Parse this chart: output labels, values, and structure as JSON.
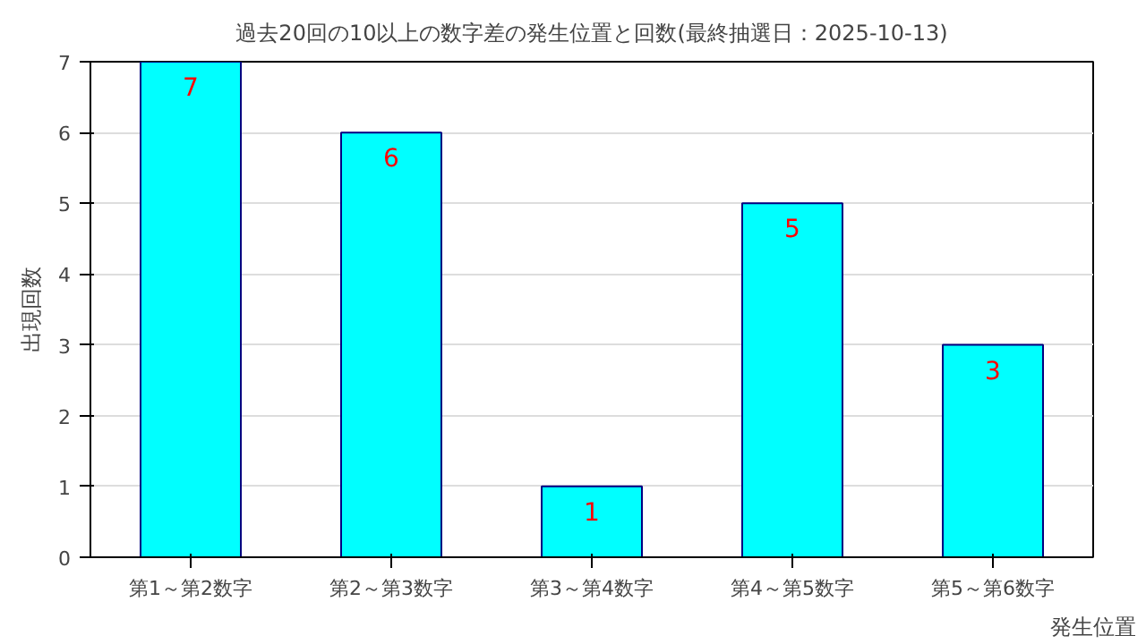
{
  "chart_data": {
    "type": "bar",
    "title": "過去20回の10以上の数字差の発生位置と回数(最終抽選日：2025-10-13)",
    "xlabel": "発生位置",
    "ylabel": "出現回数",
    "categories": [
      "第1～第2数字",
      "第2～第3数字",
      "第3～第4数字",
      "第4～第5数字",
      "第5～第6数字"
    ],
    "values": [
      7,
      6,
      1,
      5,
      3
    ],
    "color": "#00ffff",
    "ylim": [
      0,
      7
    ],
    "yticks": [
      0,
      1,
      2,
      3,
      4,
      5,
      6,
      7
    ],
    "grid": "y",
    "data_labels": true
  }
}
